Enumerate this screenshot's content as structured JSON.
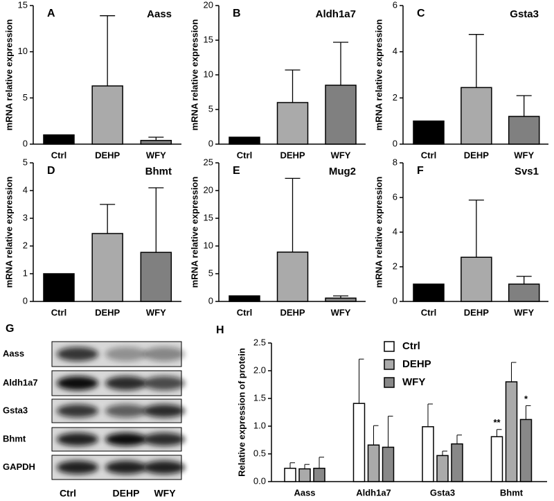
{
  "chart_data": [
    {
      "type": "bar",
      "panel": "A",
      "title": "Aass",
      "y_label": "mRNA relative expression",
      "categories": [
        "Ctrl",
        "DEHP",
        "WFY"
      ],
      "values": [
        1.0,
        6.3,
        0.4
      ],
      "errors": [
        null,
        7.6,
        0.35
      ],
      "colors": [
        "#000000",
        "#aaaaaa",
        "#808080"
      ],
      "ylim": [
        0,
        15
      ],
      "yticks": [
        0,
        5,
        10,
        15
      ]
    },
    {
      "type": "bar",
      "panel": "B",
      "title": "Aldh1a7",
      "y_label": "mRNA relative expression",
      "categories": [
        "Ctrl",
        "DEHP",
        "WFY"
      ],
      "values": [
        1.0,
        6.0,
        8.5
      ],
      "errors": [
        null,
        4.7,
        6.2
      ],
      "colors": [
        "#000000",
        "#aaaaaa",
        "#808080"
      ],
      "ylim": [
        0,
        20
      ],
      "yticks": [
        0,
        5,
        10,
        15,
        20
      ]
    },
    {
      "type": "bar",
      "panel": "C",
      "title": "Gsta3",
      "y_label": "mRNA relative expression",
      "categories": [
        "Ctrl",
        "DEHP",
        "WFY"
      ],
      "values": [
        1.0,
        2.45,
        1.2
      ],
      "errors": [
        null,
        2.3,
        0.9
      ],
      "colors": [
        "#000000",
        "#aaaaaa",
        "#808080"
      ],
      "ylim": [
        0,
        6
      ],
      "yticks": [
        0,
        2,
        4,
        6
      ]
    },
    {
      "type": "bar",
      "panel": "D",
      "title": "Bhmt",
      "y_label": "mRNA relative expression",
      "categories": [
        "Ctrl",
        "DEHP",
        "WFY"
      ],
      "values": [
        1.0,
        2.45,
        1.77
      ],
      "errors": [
        null,
        1.05,
        2.33
      ],
      "colors": [
        "#000000",
        "#aaaaaa",
        "#808080"
      ],
      "ylim": [
        0,
        5
      ],
      "yticks": [
        0,
        1,
        2,
        3,
        4,
        5
      ]
    },
    {
      "type": "bar",
      "panel": "E",
      "title": "Mug2",
      "y_label": "mRNA relative expression",
      "categories": [
        "Ctrl",
        "DEHP",
        "WFY"
      ],
      "values": [
        1.0,
        8.9,
        0.6
      ],
      "errors": [
        null,
        13.3,
        0.4
      ],
      "colors": [
        "#000000",
        "#aaaaaa",
        "#808080"
      ],
      "ylim": [
        0,
        25
      ],
      "yticks": [
        0,
        5,
        10,
        15,
        20,
        25
      ]
    },
    {
      "type": "bar",
      "panel": "F",
      "title": "Svs1",
      "y_label": "mRNA relative expression",
      "categories": [
        "Ctrl",
        "DEHP",
        "WFY"
      ],
      "values": [
        1.0,
        2.55,
        1.0
      ],
      "errors": [
        null,
        3.3,
        0.45
      ],
      "colors": [
        "#000000",
        "#aaaaaa",
        "#808080"
      ],
      "ylim": [
        0,
        8
      ],
      "yticks": [
        0,
        2,
        4,
        6,
        8
      ]
    },
    {
      "type": "grouped_bar",
      "panel": "H",
      "y_label": "Relative expression of protein",
      "categories": [
        "Aass",
        "Aldh1a7",
        "Gsta3",
        "Bhmt"
      ],
      "series": [
        {
          "name": "Ctrl",
          "color": "#ffffff",
          "values": [
            0.24,
            1.41,
            0.99,
            0.81
          ],
          "errors": [
            0.1,
            0.8,
            0.41,
            0.13
          ]
        },
        {
          "name": "DEHP",
          "color": "#aaaaaa",
          "values": [
            0.23,
            0.66,
            0.47,
            1.8
          ],
          "errors": [
            0.08,
            0.35,
            0.08,
            0.35
          ]
        },
        {
          "name": "WFY",
          "color": "#888888",
          "values": [
            0.24,
            0.62,
            0.68,
            1.12
          ],
          "errors": [
            0.2,
            0.56,
            0.16,
            0.25
          ]
        }
      ],
      "ylim": [
        0,
        2.5
      ],
      "yticks": [
        {
          "value": 0,
          "label": "0.0"
        },
        0.5,
        {
          "value": 1,
          "label": "1.0"
        },
        1.5,
        {
          "value": 2,
          "label": "2.0"
        },
        2.5
      ],
      "legend": "upper-right",
      "annotations": [
        {
          "text": "**",
          "category": "Bhmt",
          "series": "Ctrl"
        },
        {
          "text": "*",
          "category": "Bhmt",
          "series": "WFY"
        }
      ]
    }
  ],
  "blot": {
    "panel": "G",
    "rows": [
      "Aass",
      "Aldh1a7",
      "Gsta3",
      "Bhmt",
      "GAPDH"
    ],
    "columns": [
      "Ctrl",
      "DEHP",
      "WFY"
    ]
  }
}
